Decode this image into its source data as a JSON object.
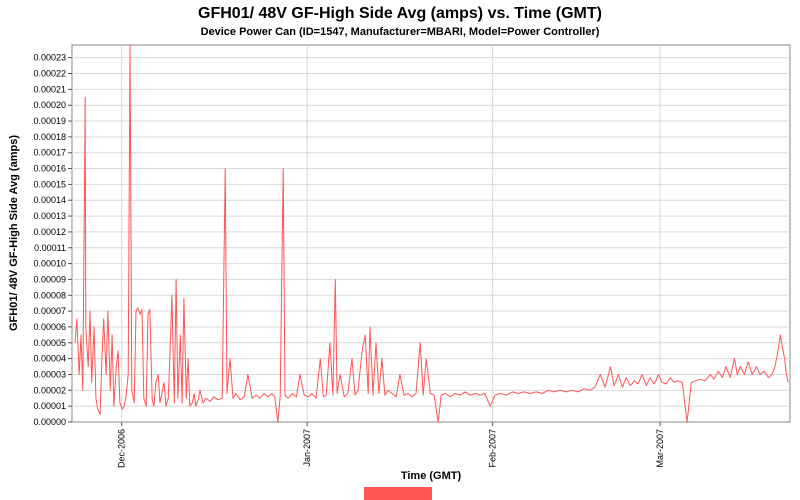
{
  "chart_data": {
    "type": "line",
    "title": "GFH01/ 48V GF-High Side Avg (amps) vs. Time (GMT)",
    "subtitle": "Device Power Can (ID=1547, Manufacturer=MBARI, Model=Power Controller)",
    "xlabel": "Time (GMT)",
    "ylabel": "GFH01/ 48V GF-High Side Avg (amps)",
    "grid": true,
    "x_axis": {
      "unit": "days since plot start (approx. 22 Nov 2006)",
      "range": [
        0,
        120
      ],
      "ticks": [
        {
          "pos": 8.3,
          "label": "Dec-2006"
        },
        {
          "pos": 39.3,
          "label": "Jan-2007"
        },
        {
          "pos": 70.3,
          "label": "Feb-2007"
        },
        {
          "pos": 98.3,
          "label": "Mar-2007"
        }
      ]
    },
    "y_axis": {
      "range": [
        0,
        0.000238
      ],
      "tick_step": 1e-05,
      "tick_labels": [
        "0.00000",
        "0.00001",
        "0.00002",
        "0.00003",
        "0.00004",
        "0.00005",
        "0.00006",
        "0.00007",
        "0.00008",
        "0.00009",
        "0.00010",
        "0.00011",
        "0.00012",
        "0.00013",
        "0.00014",
        "0.00015",
        "0.00016",
        "0.00017",
        "0.00018",
        "0.00019",
        "0.00020",
        "0.00021",
        "0.00022",
        "0.00023"
      ]
    },
    "legend": {
      "position": "bottom",
      "swatch_color": "#ff5555",
      "note": "legend clipped at bottom edge of image, no text visible"
    },
    "series": [
      {
        "color": "#ff5555",
        "y_unit": "microamps",
        "y_scale": 1e-06,
        "points": [
          [
            0.5,
            50
          ],
          [
            0.8,
            65
          ],
          [
            1.2,
            30
          ],
          [
            1.5,
            55
          ],
          [
            1.8,
            20
          ],
          [
            2.2,
            205
          ],
          [
            2.3,
            60
          ],
          [
            2.7,
            35
          ],
          [
            3.0,
            70
          ],
          [
            3.3,
            25
          ],
          [
            3.7,
            60
          ],
          [
            4.0,
            15
          ],
          [
            4.3,
            8
          ],
          [
            4.7,
            5
          ],
          [
            5.0,
            40
          ],
          [
            5.3,
            65
          ],
          [
            5.7,
            30
          ],
          [
            6.0,
            70
          ],
          [
            6.4,
            20
          ],
          [
            6.7,
            55
          ],
          [
            7.0,
            10
          ],
          [
            7.4,
            35
          ],
          [
            7.7,
            45
          ],
          [
            8.0,
            12
          ],
          [
            8.4,
            8
          ],
          [
            8.7,
            10
          ],
          [
            9.0,
            15
          ],
          [
            9.4,
            30
          ],
          [
            9.7,
            238
          ],
          [
            10.0,
            20
          ],
          [
            10.4,
            12
          ],
          [
            10.7,
            70
          ],
          [
            11.0,
            72
          ],
          [
            11.4,
            68
          ],
          [
            11.7,
            71
          ],
          [
            12.0,
            15
          ],
          [
            12.4,
            10
          ],
          [
            12.7,
            68
          ],
          [
            13.0,
            71
          ],
          [
            13.4,
            14
          ],
          [
            13.7,
            10
          ],
          [
            14.0,
            25
          ],
          [
            14.4,
            30
          ],
          [
            14.7,
            12
          ],
          [
            15.0,
            18
          ],
          [
            15.4,
            25
          ],
          [
            15.7,
            10
          ],
          [
            16.1,
            15
          ],
          [
            16.4,
            45
          ],
          [
            16.7,
            80
          ],
          [
            17.1,
            12
          ],
          [
            17.4,
            90
          ],
          [
            17.7,
            15
          ],
          [
            18.1,
            55
          ],
          [
            18.4,
            12
          ],
          [
            18.7,
            78
          ],
          [
            19.1,
            15
          ],
          [
            19.4,
            40
          ],
          [
            19.7,
            10
          ],
          [
            20.1,
            12
          ],
          [
            20.4,
            18
          ],
          [
            20.7,
            10
          ],
          [
            21.1,
            14
          ],
          [
            21.4,
            20
          ],
          [
            21.9,
            12
          ],
          [
            22.4,
            15
          ],
          [
            23.1,
            13
          ],
          [
            23.7,
            16
          ],
          [
            24.4,
            14
          ],
          [
            25.1,
            15
          ],
          [
            25.6,
            160
          ],
          [
            25.9,
            18
          ],
          [
            26.4,
            40
          ],
          [
            26.9,
            15
          ],
          [
            27.4,
            18
          ],
          [
            28.1,
            14
          ],
          [
            28.8,
            16
          ],
          [
            29.4,
            30
          ],
          [
            30.1,
            15
          ],
          [
            30.8,
            17
          ],
          [
            31.4,
            15
          ],
          [
            32.1,
            18
          ],
          [
            32.8,
            16
          ],
          [
            33.4,
            18
          ],
          [
            33.9,
            16
          ],
          [
            34.4,
            0
          ],
          [
            34.8,
            16
          ],
          [
            35.3,
            160
          ],
          [
            35.6,
            17
          ],
          [
            36.1,
            15
          ],
          [
            36.8,
            18
          ],
          [
            37.5,
            16
          ],
          [
            38.1,
            30
          ],
          [
            38.8,
            17
          ],
          [
            39.5,
            16
          ],
          [
            40.1,
            18
          ],
          [
            40.8,
            15
          ],
          [
            41.5,
            40
          ],
          [
            42.0,
            16
          ],
          [
            42.5,
            17
          ],
          [
            43.1,
            50
          ],
          [
            43.6,
            17
          ],
          [
            44.0,
            90
          ],
          [
            44.3,
            18
          ],
          [
            44.8,
            30
          ],
          [
            45.5,
            16
          ],
          [
            46.1,
            18
          ],
          [
            46.8,
            40
          ],
          [
            47.3,
            17
          ],
          [
            47.8,
            20
          ],
          [
            48.5,
            45
          ],
          [
            49.0,
            55
          ],
          [
            49.5,
            18
          ],
          [
            49.8,
            60
          ],
          [
            50.3,
            17
          ],
          [
            50.8,
            50
          ],
          [
            51.3,
            18
          ],
          [
            51.8,
            40
          ],
          [
            52.3,
            17
          ],
          [
            52.8,
            20
          ],
          [
            53.5,
            18
          ],
          [
            54.2,
            16
          ],
          [
            54.8,
            30
          ],
          [
            55.5,
            17
          ],
          [
            56.2,
            18
          ],
          [
            56.8,
            16
          ],
          [
            57.5,
            18
          ],
          [
            58.2,
            50
          ],
          [
            58.7,
            17
          ],
          [
            59.2,
            40
          ],
          [
            59.9,
            18
          ],
          [
            60.5,
            17
          ],
          [
            61.2,
            0
          ],
          [
            61.7,
            17
          ],
          [
            62.4,
            18
          ],
          [
            63.2,
            16
          ],
          [
            64.0,
            18
          ],
          [
            64.9,
            17
          ],
          [
            65.7,
            19
          ],
          [
            66.5,
            17
          ],
          [
            67.4,
            18
          ],
          [
            68.2,
            17
          ],
          [
            69.0,
            18
          ],
          [
            69.9,
            10
          ],
          [
            70.7,
            17
          ],
          [
            71.6,
            18
          ],
          [
            72.6,
            17
          ],
          [
            73.6,
            19
          ],
          [
            74.6,
            18
          ],
          [
            75.6,
            19
          ],
          [
            76.6,
            18
          ],
          [
            77.6,
            19
          ],
          [
            78.6,
            18
          ],
          [
            79.6,
            20
          ],
          [
            80.6,
            19
          ],
          [
            81.6,
            20
          ],
          [
            82.6,
            19
          ],
          [
            83.6,
            20
          ],
          [
            84.6,
            19
          ],
          [
            85.6,
            21
          ],
          [
            86.6,
            20
          ],
          [
            87.4,
            22
          ],
          [
            88.3,
            30
          ],
          [
            89.1,
            22
          ],
          [
            90.0,
            35
          ],
          [
            90.6,
            23
          ],
          [
            91.3,
            30
          ],
          [
            92.0,
            22
          ],
          [
            92.6,
            28
          ],
          [
            93.3,
            23
          ],
          [
            94.0,
            26
          ],
          [
            94.6,
            24
          ],
          [
            95.3,
            30
          ],
          [
            96.0,
            23
          ],
          [
            96.6,
            28
          ],
          [
            97.3,
            24
          ],
          [
            98.0,
            30
          ],
          [
            98.6,
            25
          ],
          [
            99.3,
            24
          ],
          [
            100.0,
            28
          ],
          [
            100.6,
            25
          ],
          [
            101.3,
            26
          ],
          [
            102.0,
            25
          ],
          [
            102.8,
            0
          ],
          [
            103.5,
            25
          ],
          [
            104.2,
            26
          ],
          [
            105.0,
            27
          ],
          [
            105.8,
            26
          ],
          [
            106.7,
            30
          ],
          [
            107.3,
            27
          ],
          [
            108.0,
            32
          ],
          [
            108.7,
            28
          ],
          [
            109.3,
            35
          ],
          [
            110.0,
            28
          ],
          [
            110.7,
            40
          ],
          [
            111.2,
            30
          ],
          [
            111.7,
            35
          ],
          [
            112.4,
            30
          ],
          [
            113.0,
            38
          ],
          [
            113.7,
            30
          ],
          [
            114.4,
            35
          ],
          [
            115.0,
            30
          ],
          [
            115.7,
            32
          ],
          [
            116.4,
            28
          ],
          [
            117.0,
            30
          ],
          [
            117.5,
            35
          ],
          [
            118.0,
            45
          ],
          [
            118.4,
            55
          ],
          [
            118.7,
            48
          ],
          [
            119.1,
            40
          ],
          [
            119.4,
            30
          ],
          [
            119.7,
            25
          ]
        ]
      }
    ]
  }
}
